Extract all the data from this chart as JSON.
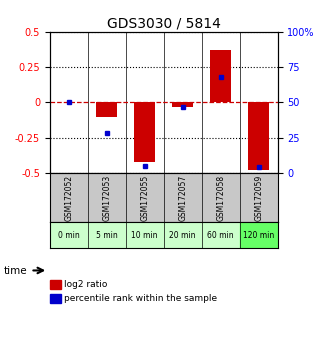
{
  "title": "GDS3030 / 5814",
  "categories": [
    "GSM172052",
    "GSM172053",
    "GSM172055",
    "GSM172057",
    "GSM172058",
    "GSM172059"
  ],
  "time_labels": [
    "0 min",
    "5 min",
    "10 min",
    "20 min",
    "60 min",
    "120 min"
  ],
  "log2_ratios": [
    0.0,
    -0.1,
    -0.42,
    -0.03,
    0.37,
    -0.48
  ],
  "percentile_ranks": [
    50,
    28,
    5,
    47,
    68,
    4
  ],
  "ylim_left": [
    -0.5,
    0.5
  ],
  "ylim_right": [
    0,
    100
  ],
  "yticks_left": [
    -0.5,
    -0.25,
    0,
    0.25,
    0.5
  ],
  "yticks_right": [
    0,
    25,
    50,
    75,
    100
  ],
  "bar_color": "#cc0000",
  "dot_color": "#0000cc",
  "grid_color": "#000000",
  "zero_line_color": "#cc0000",
  "bg_color": "#ffffff",
  "plot_bg": "#ffffff",
  "gray_bg": "#c8c8c8",
  "green_bg_light": "#ccffcc",
  "green_bg_dark": "#66ff66",
  "title_fontsize": 10,
  "tick_fontsize": 7,
  "label_fontsize": 7
}
